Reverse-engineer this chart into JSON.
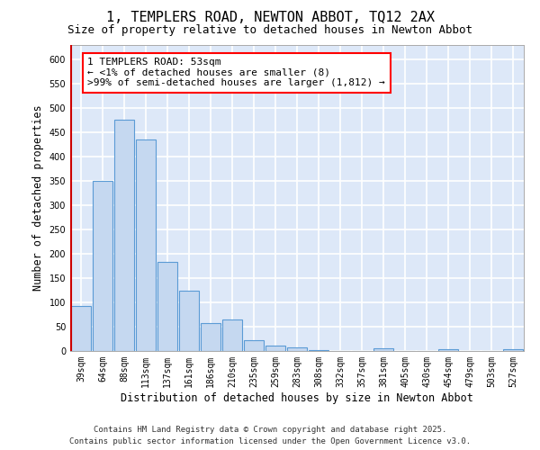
{
  "title_line1": "1, TEMPLERS ROAD, NEWTON ABBOT, TQ12 2AX",
  "title_line2": "Size of property relative to detached houses in Newton Abbot",
  "xlabel": "Distribution of detached houses by size in Newton Abbot",
  "ylabel": "Number of detached properties",
  "categories": [
    "39sqm",
    "64sqm",
    "88sqm",
    "113sqm",
    "137sqm",
    "161sqm",
    "186sqm",
    "210sqm",
    "235sqm",
    "259sqm",
    "283sqm",
    "308sqm",
    "332sqm",
    "357sqm",
    "381sqm",
    "405sqm",
    "430sqm",
    "454sqm",
    "479sqm",
    "503sqm",
    "527sqm"
  ],
  "values": [
    93,
    350,
    477,
    435,
    183,
    125,
    57,
    65,
    22,
    11,
    7,
    2,
    0,
    0,
    5,
    0,
    0,
    3,
    0,
    0,
    3
  ],
  "bar_color": "#c5d8f0",
  "bar_edge_color": "#5b9bd5",
  "fig_background_color": "#ffffff",
  "plot_background_color": "#dde8f8",
  "grid_color": "#ffffff",
  "annotation_text": "1 TEMPLERS ROAD: 53sqm\n← <1% of detached houses are smaller (8)\n>99% of semi-detached houses are larger (1,812) →",
  "vline_color": "#cc0000",
  "ylim": [
    0,
    630
  ],
  "yticks": [
    0,
    50,
    100,
    150,
    200,
    250,
    300,
    350,
    400,
    450,
    500,
    550,
    600
  ],
  "footer_line1": "Contains HM Land Registry data © Crown copyright and database right 2025.",
  "footer_line2": "Contains public sector information licensed under the Open Government Licence v3.0.",
  "title_fontsize": 11,
  "subtitle_fontsize": 9,
  "axis_label_fontsize": 8.5,
  "tick_fontsize": 7,
  "annotation_fontsize": 8,
  "footer_fontsize": 6.5
}
